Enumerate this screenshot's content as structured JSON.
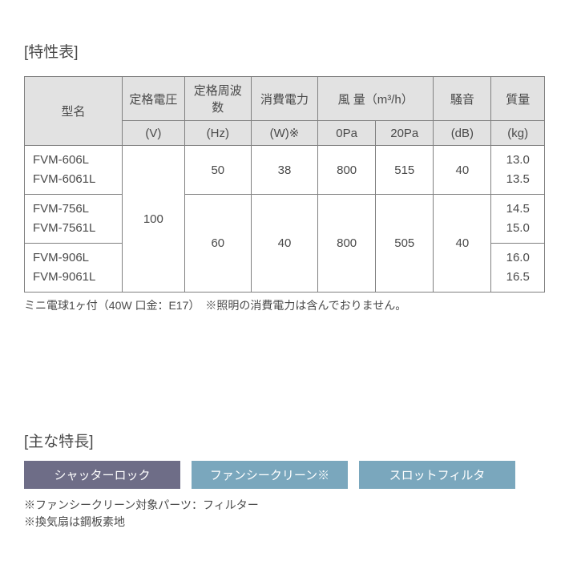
{
  "characteristics": {
    "title": "[特性表]",
    "headers": {
      "model": "型名",
      "voltage": "定格電圧",
      "voltage_unit": "(V)",
      "freq": "定格周波数",
      "freq_unit": "(Hz)",
      "power": "消費電力",
      "power_unit": "(W)※",
      "airflow": "風 量（m³/h）",
      "airflow_0": "0Pa",
      "airflow_20": "20Pa",
      "noise": "騒音",
      "noise_unit": "(dB)",
      "mass": "質量",
      "mass_unit": "(kg)"
    },
    "voltage_value": "100",
    "rows": [
      {
        "models": "FVM-606L\nFVM-6061L",
        "hz": "50",
        "w": "38",
        "af0": "800",
        "af20": "515",
        "db": "40",
        "kg": "13.0\n13.5"
      },
      {
        "models": "FVM-756L\nFVM-7561L",
        "kg": "14.5\n15.0"
      },
      {
        "models": "FVM-906L\nFVM-9061L",
        "hz": "60",
        "w": "40",
        "af0": "800",
        "af20": "505",
        "db": "40",
        "kg": "16.0\n16.5"
      }
    ],
    "note": "ミニ電球1ヶ付（40W 口金：E17）　※照明の消費電力は含んでおりません。",
    "colors": {
      "border": "#808080",
      "header_bg": "#e2e2e2",
      "text": "#4a4a4a"
    }
  },
  "features": {
    "title": "[主な特長]",
    "badges": [
      {
        "label": "シャッターロック",
        "bg": "#6e6d87"
      },
      {
        "label": "ファンシークリーン※",
        "bg": "#7aa7bd"
      },
      {
        "label": "スロットフィルタ",
        "bg": "#7aa7bd"
      }
    ],
    "note1": "※ファンシークリーン対象パーツ：フィルター",
    "note2": "※換気扇は鋼板素地"
  }
}
